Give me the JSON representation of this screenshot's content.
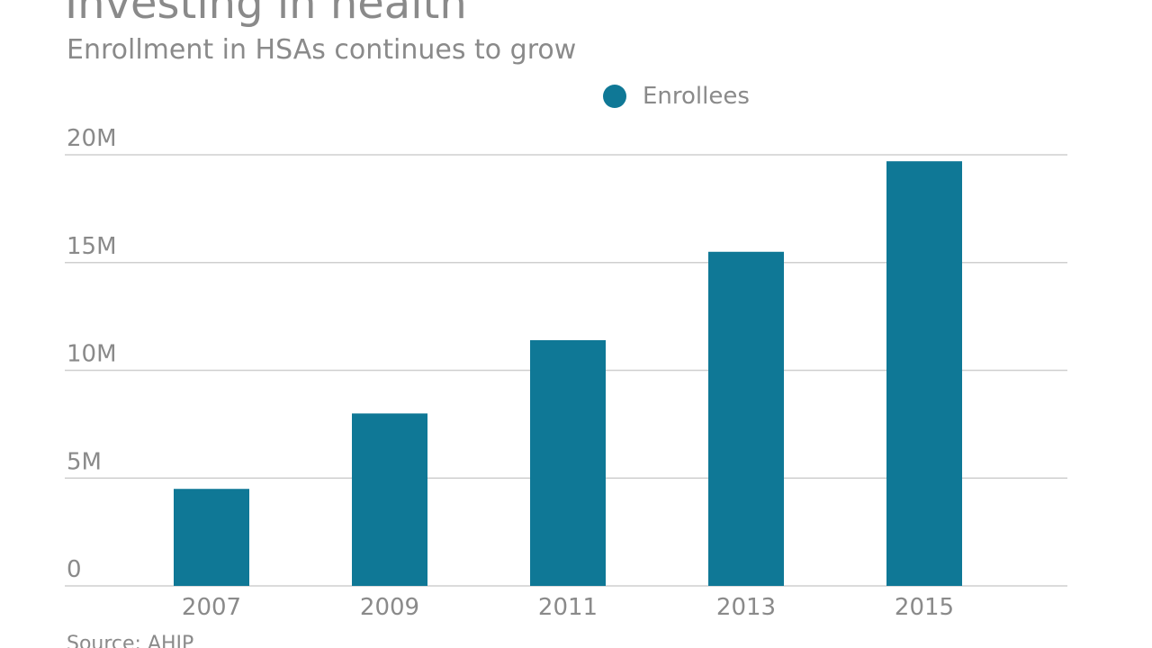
{
  "chart_data": {
    "type": "bar",
    "title": "Investing in health",
    "subtitle": "Enrollment in HSAs continues to grow",
    "categories": [
      "2007",
      "2009",
      "2011",
      "2013",
      "2015"
    ],
    "series": [
      {
        "name": "Enrollees",
        "values": [
          4.5,
          8.0,
          11.4,
          15.5,
          19.7
        ]
      }
    ],
    "y_ticks": [
      0,
      5,
      10,
      15,
      20
    ],
    "y_tick_labels": [
      "0",
      "5M",
      "10M",
      "15M",
      "20M"
    ],
    "ylim": [
      0,
      20
    ],
    "xlabel": "",
    "ylabel": "",
    "grid": true,
    "legend_position": "top-center",
    "source": "Source: AHIP",
    "colors": {
      "bar": "#0f7896",
      "grid": "#cfcfcf",
      "text": "#8a8a8a"
    }
  }
}
